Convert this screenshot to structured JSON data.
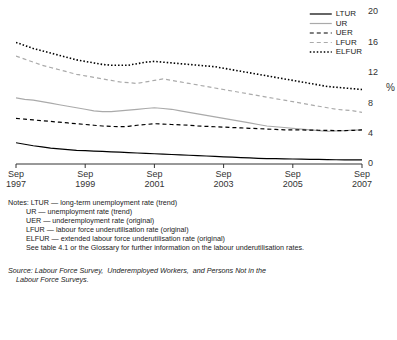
{
  "chart_data": {
    "type": "line",
    "y_label": "%",
    "ylim": [
      0,
      20
    ],
    "yticks": [
      0,
      4,
      8,
      12,
      16,
      20
    ],
    "categories": [
      "Sep\n1997",
      null,
      null,
      null,
      null,
      null,
      null,
      null,
      "Sep\n1999",
      null,
      null,
      null,
      null,
      null,
      null,
      null,
      "Sep\n2001",
      null,
      null,
      null,
      null,
      null,
      null,
      null,
      "Sep\n2003",
      null,
      null,
      null,
      null,
      null,
      null,
      null,
      "Sep\n2005",
      null,
      null,
      null,
      null,
      null,
      null,
      null,
      "Sep\n2007"
    ],
    "grid": false,
    "legend": "upper right",
    "series": [
      {
        "name": "LTUR",
        "color": "#000000",
        "line_style": "solid",
        "values": [
          2.8,
          2.6,
          2.4,
          2.25,
          2.1,
          2.0,
          1.9,
          1.8,
          1.75,
          1.7,
          1.65,
          1.6,
          1.55,
          1.5,
          1.45,
          1.4,
          1.35,
          1.3,
          1.25,
          1.2,
          1.15,
          1.1,
          1.05,
          1.0,
          0.95,
          0.9,
          0.85,
          0.8,
          0.75,
          0.72,
          0.7,
          0.68,
          0.66,
          0.64,
          0.62,
          0.6,
          0.58,
          0.56,
          0.55,
          0.54,
          0.53
        ]
      },
      {
        "name": "UR",
        "color": "#aaaaaa",
        "line_style": "solid",
        "values": [
          8.7,
          8.5,
          8.4,
          8.2,
          8.0,
          7.8,
          7.6,
          7.4,
          7.2,
          7.0,
          6.9,
          6.9,
          7.0,
          7.1,
          7.2,
          7.3,
          7.4,
          7.3,
          7.2,
          7.0,
          6.8,
          6.6,
          6.4,
          6.2,
          6.0,
          5.8,
          5.6,
          5.4,
          5.2,
          5.0,
          4.9,
          4.8,
          4.7,
          4.6,
          4.5,
          4.4,
          4.3,
          4.35,
          4.4,
          4.45,
          4.5
        ]
      },
      {
        "name": "UER",
        "color": "#000000",
        "line_style": "dashed",
        "values": [
          6.0,
          5.9,
          5.8,
          5.7,
          5.6,
          5.5,
          5.4,
          5.3,
          5.2,
          5.1,
          5.0,
          4.95,
          4.9,
          4.95,
          5.1,
          5.2,
          5.3,
          5.25,
          5.2,
          5.15,
          5.1,
          5.0,
          4.95,
          4.9,
          4.85,
          4.8,
          4.75,
          4.7,
          4.65,
          4.6,
          4.55,
          4.5,
          4.5,
          4.48,
          4.46,
          4.44,
          4.42,
          4.4,
          4.4,
          4.42,
          4.5
        ]
      },
      {
        "name": "LFUR",
        "color": "#aaaaaa",
        "line_style": "dashed",
        "values": [
          14.2,
          13.8,
          13.4,
          13.0,
          12.7,
          12.4,
          12.1,
          11.8,
          11.6,
          11.4,
          11.2,
          11.0,
          10.8,
          10.7,
          10.6,
          10.8,
          11.0,
          11.2,
          11.0,
          10.8,
          10.6,
          10.4,
          10.2,
          10.0,
          9.8,
          9.6,
          9.4,
          9.2,
          9.0,
          8.8,
          8.6,
          8.4,
          8.2,
          8.0,
          7.8,
          7.6,
          7.4,
          7.2,
          7.1,
          7.0,
          6.8
        ]
      },
      {
        "name": "ELFUR",
        "color": "#000000",
        "line_style": "dotted",
        "values": [
          16.0,
          15.6,
          15.2,
          14.9,
          14.6,
          14.3,
          14.0,
          13.7,
          13.5,
          13.3,
          13.1,
          13.0,
          13.0,
          13.0,
          13.2,
          13.4,
          13.5,
          13.4,
          13.3,
          13.2,
          13.1,
          13.0,
          12.9,
          12.8,
          12.6,
          12.4,
          12.2,
          12.0,
          11.8,
          11.6,
          11.4,
          11.2,
          11.0,
          10.8,
          10.6,
          10.4,
          10.2,
          10.1,
          10.0,
          9.9,
          9.8
        ]
      }
    ],
    "notes": [
      "Notes: LTUR — long-term unemployment rate (trend)",
      "         UR — unemployment rate (trend)",
      "         UER — underemployment rate (original)",
      "         LFUR — labour force underutilisation rate (original)",
      "         ELFUR — extended labour force underutilisation rate (original)",
      "         See table 4.1 or the Glossary for further information on the labour underutilisation rates."
    ],
    "source": [
      "Source: Labour Force Survey,  Underemployed Workers,  and Persons Not in the",
      "    Labour Force Surveys."
    ]
  }
}
